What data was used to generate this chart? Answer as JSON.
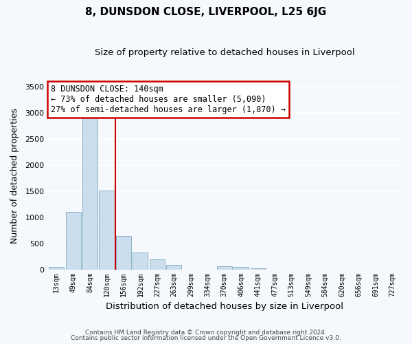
{
  "title": "8, DUNSDON CLOSE, LIVERPOOL, L25 6JG",
  "subtitle": "Size of property relative to detached houses in Liverpool",
  "xlabel": "Distribution of detached houses by size in Liverpool",
  "ylabel": "Number of detached properties",
  "bar_color": "#ccdded",
  "bar_edge_color": "#7aaabf",
  "background_color": "#f5f8fc",
  "grid_color": "#ffffff",
  "bin_labels": [
    "13sqm",
    "49sqm",
    "84sqm",
    "120sqm",
    "156sqm",
    "192sqm",
    "227sqm",
    "263sqm",
    "299sqm",
    "334sqm",
    "370sqm",
    "406sqm",
    "441sqm",
    "477sqm",
    "513sqm",
    "549sqm",
    "584sqm",
    "620sqm",
    "656sqm",
    "691sqm",
    "727sqm"
  ],
  "bar_heights": [
    45,
    1100,
    2930,
    1510,
    640,
    320,
    195,
    90,
    0,
    0,
    65,
    55,
    20,
    0,
    0,
    0,
    0,
    0,
    0,
    0,
    0
  ],
  "ylim": [
    0,
    3600
  ],
  "yticks": [
    0,
    500,
    1000,
    1500,
    2000,
    2500,
    3000,
    3500
  ],
  "property_line_x": 3.5,
  "annotation_line1": "8 DUNSDON CLOSE: 140sqm",
  "annotation_line2": "← 73% of detached houses are smaller (5,090)",
  "annotation_line3": "27% of semi-detached houses are larger (1,870) →",
  "annotation_box_color": "#ffffff",
  "annotation_border_color": "#cc0000",
  "footer_line1": "Contains HM Land Registry data © Crown copyright and database right 2024.",
  "footer_line2": "Contains public sector information licensed under the Open Government Licence v3.0."
}
